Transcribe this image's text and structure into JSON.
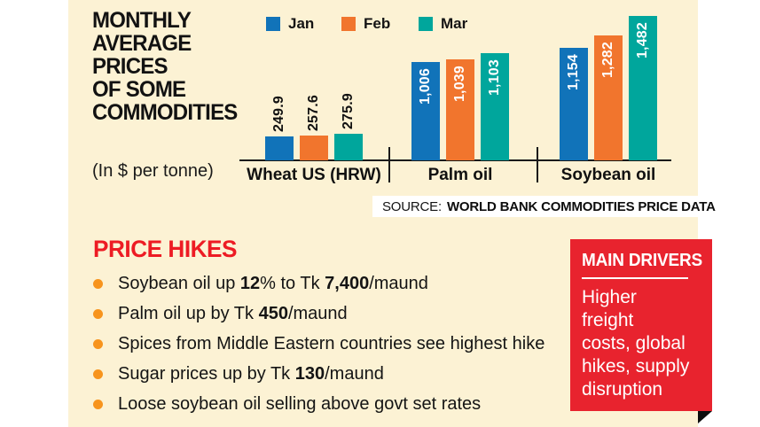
{
  "header": {
    "title_lines": [
      "MONTHLY",
      "AVERAGE",
      "PRICES",
      "OF SOME",
      "COMMODITIES"
    ],
    "subtitle": "(In $ per tonne)"
  },
  "chart_data": {
    "type": "bar",
    "title": "MONTHLY AVERAGE PRICES OF SOME COMMODITIES",
    "ylabel": "In $ per tonne",
    "categories": [
      "Wheat US (HRW)",
      "Palm oil",
      "Soybean oil"
    ],
    "series": [
      {
        "name": "Jan",
        "color": "#1173b9",
        "values": [
          249.9,
          1006,
          1154
        ]
      },
      {
        "name": "Feb",
        "color": "#f1752d",
        "values": [
          257.6,
          1039,
          1282
        ]
      },
      {
        "name": "Mar",
        "color": "#00a69c",
        "values": [
          275.9,
          1103,
          1482
        ]
      }
    ],
    "value_labels": [
      [
        "249.9",
        "257.6",
        "275.9"
      ],
      [
        "1,006",
        "1,039",
        "1,103"
      ],
      [
        "1,154",
        "1,282",
        "1,482"
      ]
    ],
    "legend_position": "top",
    "grid": false,
    "ylim": [
      0,
      1482
    ]
  },
  "source": {
    "prefix": "SOURCE:",
    "text": "WORLD BANK COMMODITIES PRICE DATA"
  },
  "price_hikes": {
    "title": "PRICE HIKES",
    "title_color": "#ed1c24",
    "bullet_color": "#f7941d",
    "items": [
      [
        {
          "t": "Soybean oil up "
        },
        {
          "t": "12",
          "b": 1
        },
        {
          "t": "% to Tk "
        },
        {
          "t": "7,400",
          "b": 1
        },
        {
          "t": "/maund"
        }
      ],
      [
        {
          "t": "Palm oil up by Tk "
        },
        {
          "t": "450",
          "b": 1
        },
        {
          "t": "/maund"
        }
      ],
      [
        {
          "t": "Spices from Middle Eastern countries see highest hike"
        }
      ],
      [
        {
          "t": "Sugar prices up by Tk "
        },
        {
          "t": "130",
          "b": 1
        },
        {
          "t": "/maund"
        }
      ],
      [
        {
          "t": "Loose soybean oil selling above govt set rates"
        }
      ]
    ]
  },
  "main_drivers": {
    "title": "MAIN DRIVERS",
    "body": "Higher\nfreight\ncosts, global\nhikes, supply\ndisruption",
    "box_color": "#e8232e"
  },
  "colors": {
    "background_panel": "#fcf2d4",
    "page": "#ffffff",
    "axis": "#1a1a1a",
    "jan": "#1173b9",
    "feb": "#f1752d",
    "mar": "#00a69c",
    "accent_red": "#ed1c24"
  }
}
